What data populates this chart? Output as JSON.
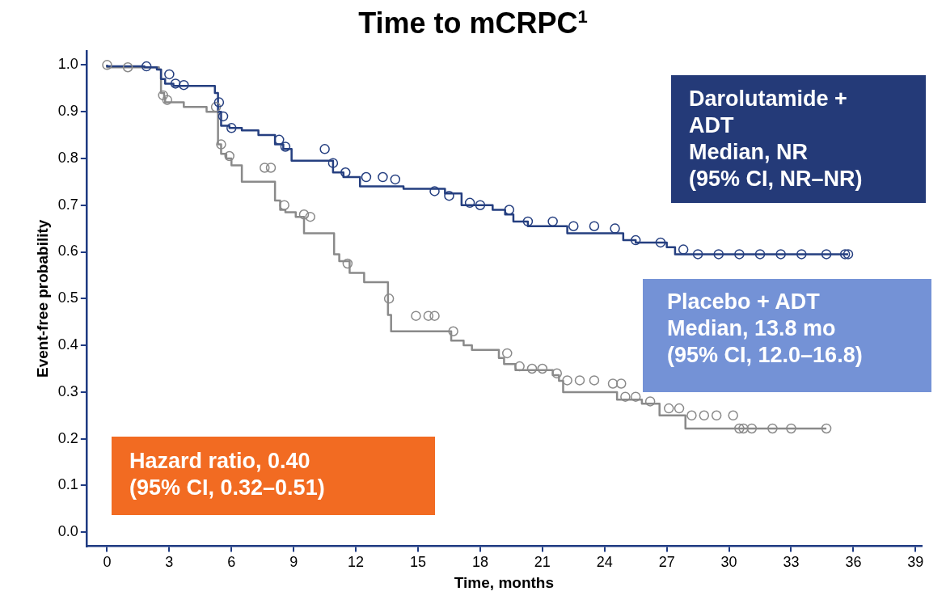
{
  "chart_data": {
    "type": "step",
    "title": "Time to mCRPC$^{1}$",
    "xlabel": "Time, months",
    "ylabel": "Event-free probability",
    "xlim": [
      -1,
      39.3
    ],
    "xticks": [
      0,
      3,
      6,
      9,
      12,
      15,
      18,
      21,
      24,
      27,
      30,
      33,
      36,
      39
    ],
    "ylim": [
      -0.03,
      1.03
    ],
    "yticks": [
      {
        "value": 0,
        "label": "0.0"
      },
      {
        "value": 0.1,
        "label": "0.1"
      },
      {
        "value": 0.2,
        "label": "0.2"
      },
      {
        "value": 0.3,
        "label": "0.3"
      },
      {
        "value": 0.4,
        "label": "0.4"
      },
      {
        "value": 0.5,
        "label": "0.5"
      },
      {
        "value": 0.6,
        "label": "0.6"
      },
      {
        "value": 0.7,
        "label": "0.7"
      },
      {
        "value": 0.8,
        "label": "0.8"
      },
      {
        "value": 0.9,
        "label": "0.9"
      },
      {
        "value": 1,
        "label": "1.0"
      }
    ],
    "grid": false,
    "legend": false,
    "marker": "none",
    "line_style": "solid",
    "series": [
      {
        "color": "#253f80",
        "x": [
          0,
          1.8,
          2.4,
          2.6,
          2.8,
          3.2,
          5.2,
          5.35,
          5.5,
          5.9,
          6.5,
          7.3,
          8.1,
          8.5,
          8.9,
          10.9,
          11.4,
          12.2,
          14.3,
          16.3,
          17.1,
          18.6,
          19.2,
          19.6,
          20.3,
          22.2,
          24.9,
          25.5,
          27.0,
          27.4,
          28.2,
          35.75
        ],
        "values": [
          1.0,
          0.997,
          0.995,
          0.99,
          0.97,
          0.96,
          0.955,
          0.94,
          0.9,
          0.87,
          0.865,
          0.86,
          0.85,
          0.83,
          0.82,
          0.795,
          0.77,
          0.76,
          0.74,
          0.735,
          0.725,
          0.7,
          0.69,
          0.68,
          0.665,
          0.655,
          0.64,
          0.625,
          0.62,
          0.61,
          0.595,
          0.595
        ]
      },
      {
        "color": "#8a8a8a",
        "x": [
          0,
          2.5,
          2.6,
          2.75,
          2.8,
          3.7,
          4.8,
          5.35,
          5.5,
          5.75,
          6.0,
          6.5,
          8.1,
          8.35,
          8.6,
          9.1,
          9.5,
          10.95,
          11.2,
          11.7,
          12.4,
          13.55,
          13.7,
          16.6,
          17.2,
          17.6,
          18.9,
          19.15,
          19.7,
          21.5,
          21.8,
          22.0,
          24.6,
          25.8,
          26.65,
          27.9,
          30.4,
          34.7
        ],
        "values": [
          1.0,
          0.995,
          0.99,
          0.94,
          0.93,
          0.92,
          0.91,
          0.9,
          0.83,
          0.81,
          0.8,
          0.785,
          0.75,
          0.71,
          0.69,
          0.685,
          0.675,
          0.64,
          0.595,
          0.58,
          0.555,
          0.535,
          0.465,
          0.43,
          0.41,
          0.4,
          0.39,
          0.373,
          0.36,
          0.347,
          0.336,
          0.324,
          0.3,
          0.284,
          0.275,
          0.25,
          0.222,
          0.222
        ]
      },
      {
        "type": "scatter",
        "marker": "circle",
        "color": "#253f80",
        "x": [
          1.9,
          3.0,
          3.3,
          3.7,
          5.4,
          5.6,
          6.0,
          8.3,
          8.6,
          10.5,
          10.9,
          11.5,
          12.5,
          13.3,
          13.9,
          15.8,
          16.5,
          17.5,
          18.0,
          19.4,
          20.3,
          21.5,
          22.5,
          23.5,
          24.5,
          25.5,
          26.7,
          27.8,
          28.5,
          29.5,
          30.5,
          31.5,
          32.5,
          33.5,
          34.7,
          35.6,
          35.75
        ],
        "values": [
          0.997,
          0.98,
          0.96,
          0.957,
          0.92,
          0.89,
          0.865,
          0.84,
          0.825,
          0.82,
          0.79,
          0.77,
          0.76,
          0.76,
          0.755,
          0.73,
          0.72,
          0.705,
          0.7,
          0.69,
          0.665,
          0.665,
          0.655,
          0.655,
          0.65,
          0.625,
          0.62,
          0.605,
          0.595,
          0.595,
          0.595,
          0.595,
          0.595,
          0.595,
          0.595,
          0.595,
          0.595
        ]
      },
      {
        "type": "scatter",
        "marker": "circle",
        "color": "#8a8a8a",
        "x": [
          0,
          1.0,
          2.7,
          2.9,
          5.25,
          5.5,
          5.9,
          7.6,
          7.9,
          8.55,
          9.5,
          9.8,
          11.6,
          13.6,
          14.9,
          15.5,
          15.8,
          16.7,
          19.3,
          19.9,
          20.5,
          21.0,
          21.7,
          22.2,
          22.8,
          23.5,
          24.4,
          24.8,
          25.0,
          25.5,
          26.2,
          27.1,
          27.6,
          28.2,
          28.8,
          29.4,
          30.2,
          30.5,
          30.7,
          31.1,
          32.1,
          33.0,
          34.7
        ],
        "values": [
          1.0,
          0.995,
          0.935,
          0.925,
          0.91,
          0.83,
          0.805,
          0.78,
          0.78,
          0.7,
          0.68,
          0.675,
          0.575,
          0.5,
          0.463,
          0.463,
          0.463,
          0.43,
          0.383,
          0.355,
          0.35,
          0.35,
          0.34,
          0.325,
          0.325,
          0.325,
          0.318,
          0.318,
          0.29,
          0.29,
          0.28,
          0.265,
          0.265,
          0.25,
          0.25,
          0.25,
          0.25,
          0.222,
          0.222,
          0.222,
          0.222,
          0.222,
          0.222
        ]
      }
    ],
    "annotations": [
      "Darolutamide +\nADT\nMedian, NR\n(95% CI, NR–NR)",
      "Placebo + ADT\nMedian, 13.8 mo\n(95% CI, 12.0–16.8)",
      "Hazard ratio, 0.40\n(95% CI, 0.32–0.51)"
    ]
  }
}
